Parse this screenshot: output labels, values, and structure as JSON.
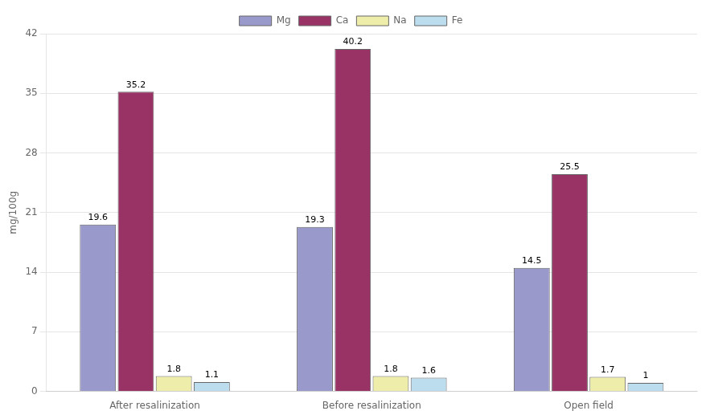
{
  "chart_data": {
    "type": "bar",
    "categories": [
      "After resalinization",
      "Before resalinization",
      "Open field"
    ],
    "series": [
      {
        "name": "Mg",
        "color": "#9999CC",
        "values": [
          19.6,
          19.3,
          14.5
        ]
      },
      {
        "name": "Ca",
        "color": "#993366",
        "values": [
          35.2,
          40.2,
          25.5
        ]
      },
      {
        "name": "Na",
        "color": "#EEEEAA",
        "values": [
          1.8,
          1.8,
          1.7
        ]
      },
      {
        "name": "Fe",
        "color": "#BBDDEE",
        "values": [
          1.1,
          1.6,
          1.0
        ]
      }
    ],
    "ylabel": "mg/100g",
    "ylim": [
      0,
      42
    ],
    "yticks": [
      0,
      7,
      14,
      21,
      28,
      35,
      42
    ],
    "grid": true,
    "legend": "top",
    "data_labels": true
  }
}
